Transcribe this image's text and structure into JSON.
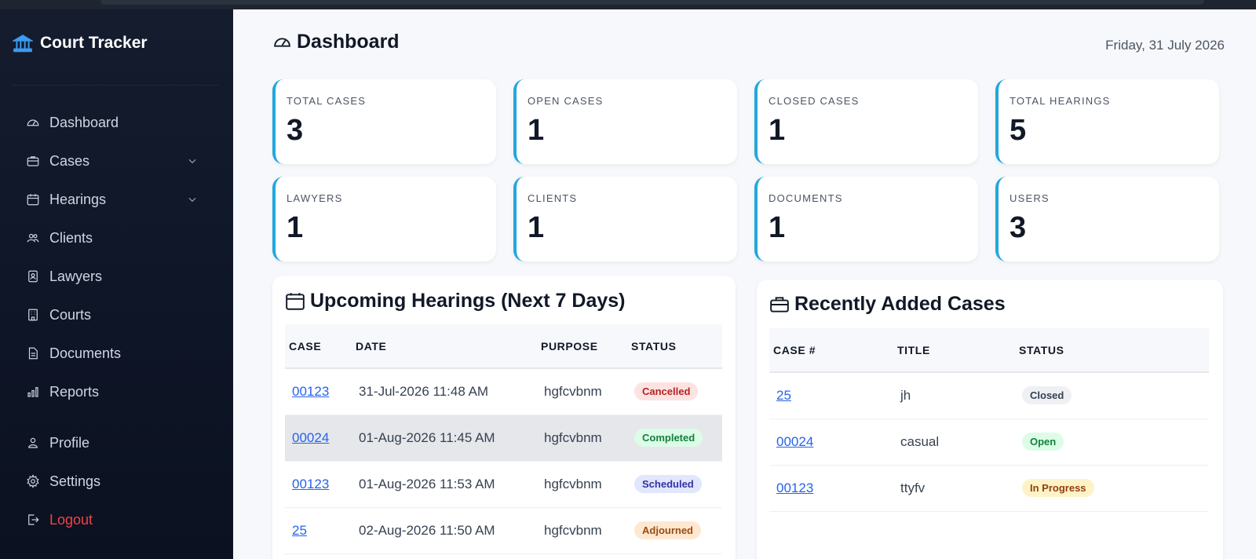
{
  "app": {
    "title": "Court Tracker"
  },
  "sidebar": {
    "items": [
      {
        "label": "Dashboard",
        "icon": "gauge-icon"
      },
      {
        "label": "Cases",
        "icon": "briefcase-icon",
        "expandable": true
      },
      {
        "label": "Hearings",
        "icon": "calendar-icon",
        "expandable": true
      },
      {
        "label": "Clients",
        "icon": "people-icon"
      },
      {
        "label": "Lawyers",
        "icon": "id-badge-icon"
      },
      {
        "label": "Courts",
        "icon": "building-icon"
      },
      {
        "label": "Documents",
        "icon": "document-icon"
      },
      {
        "label": "Reports",
        "icon": "bar-chart-icon"
      }
    ],
    "bottom": [
      {
        "label": "Profile",
        "icon": "person-icon"
      },
      {
        "label": "Settings",
        "icon": "gear-icon"
      },
      {
        "label": "Logout",
        "icon": "logout-icon"
      }
    ]
  },
  "header": {
    "title": "Dashboard",
    "date": "Friday, 31 July 2026"
  },
  "stats": [
    {
      "label": "TOTAL CASES",
      "value": "3"
    },
    {
      "label": "OPEN CASES",
      "value": "1"
    },
    {
      "label": "CLOSED CASES",
      "value": "1"
    },
    {
      "label": "TOTAL HEARINGS",
      "value": "5"
    },
    {
      "label": "LAWYERS",
      "value": "1"
    },
    {
      "label": "CLIENTS",
      "value": "1"
    },
    {
      "label": "DOCUMENTS",
      "value": "1"
    },
    {
      "label": "USERS",
      "value": "3"
    }
  ],
  "hearings": {
    "title": "Upcoming Hearings (Next 7 Days)",
    "columns": [
      "CASE",
      "DATE",
      "PURPOSE",
      "STATUS"
    ],
    "rows": [
      {
        "case": "00123",
        "date": "31-Jul-2026 11:48 AM",
        "purpose": "hgfcvbnm",
        "status": "Cancelled"
      },
      {
        "case": "00024",
        "date": "01-Aug-2026 11:45 AM",
        "purpose": "hgfcvbnm",
        "status": "Completed"
      },
      {
        "case": "00123",
        "date": "01-Aug-2026 11:53 AM",
        "purpose": "hgfcvbnm",
        "status": "Scheduled"
      },
      {
        "case": "25",
        "date": "02-Aug-2026 11:50 AM",
        "purpose": "hgfcvbnm",
        "status": "Adjourned"
      }
    ]
  },
  "recent_cases": {
    "title": "Recently Added Cases",
    "columns": [
      "CASE #",
      "TITLE",
      "STATUS"
    ],
    "rows": [
      {
        "case": "25",
        "title": "jh",
        "status": "Closed"
      },
      {
        "case": "00024",
        "title": "casual",
        "status": "Open"
      },
      {
        "case": "00123",
        "title": "ttyfv",
        "status": "In Progress"
      }
    ]
  },
  "colors": {
    "accent": "#22a8dc",
    "sidebar_bg": "#0e1526",
    "logout": "#ef4444",
    "link": "#2563eb"
  }
}
